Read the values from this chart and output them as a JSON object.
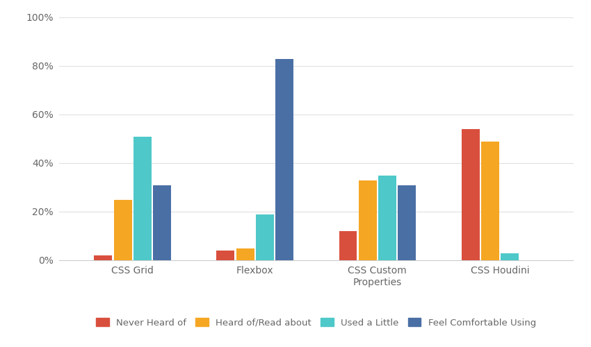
{
  "categories": [
    "CSS Grid",
    "Flexbox",
    "CSS Custom\nProperties",
    "CSS Houdini"
  ],
  "series": {
    "Never Heard of": [
      2,
      4,
      12,
      54
    ],
    "Heard of/Read about": [
      25,
      5,
      33,
      49
    ],
    "Used a Little": [
      51,
      19,
      35,
      3
    ],
    "Feel Comfortable Using": [
      31,
      83,
      31,
      0
    ]
  },
  "colors": {
    "Never Heard of": "#d94f3d",
    "Heard of/Read about": "#f5a623",
    "Used a Little": "#4ec8c8",
    "Feel Comfortable Using": "#4a6fa5"
  },
  "ylim": [
    0,
    100
  ],
  "yticks": [
    0,
    20,
    40,
    60,
    80,
    100
  ],
  "ytick_labels": [
    "0%",
    "20%",
    "40%",
    "60%",
    "80%",
    "100%"
  ],
  "background_color": "#ffffff",
  "grid_color": "#e0e0e0",
  "bar_width": 0.16,
  "figsize": [
    8.5,
    5.0
  ],
  "dpi": 100
}
